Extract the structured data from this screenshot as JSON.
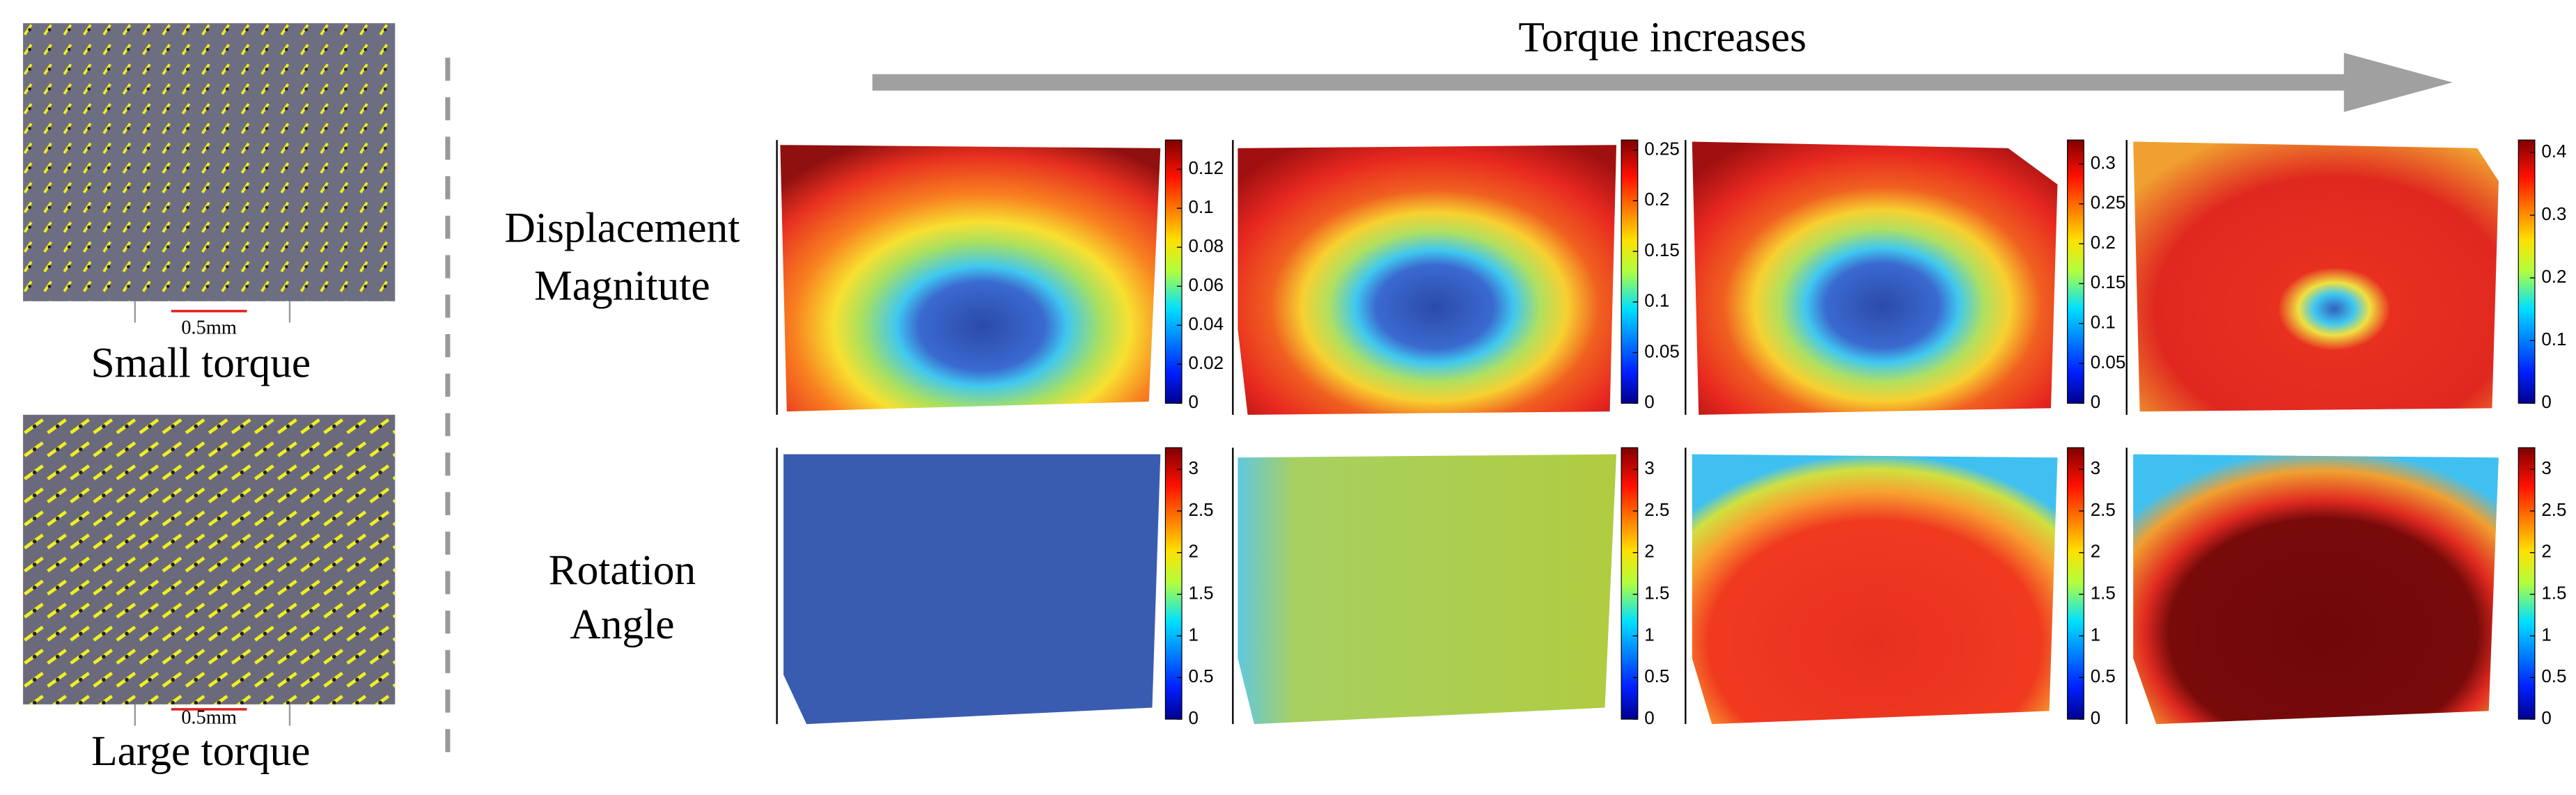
{
  "header": {
    "arrow_label": "Torque increases"
  },
  "photos": [
    {
      "label": "Small torque",
      "scale_bar": "0.5mm"
    },
    {
      "label": "Large torque",
      "scale_bar": "0.5mm"
    }
  ],
  "rows": [
    {
      "label": [
        "Displacement",
        "Magnitute"
      ],
      "colorbars": [
        {
          "lim": [
            0,
            0.135
          ],
          "ticks": [
            0,
            0.02,
            0.04,
            0.06,
            0.08,
            0.1,
            0.12
          ]
        },
        {
          "lim": [
            0,
            0.26
          ],
          "ticks": [
            0,
            0.05,
            0.1,
            0.15,
            0.2,
            0.25
          ]
        },
        {
          "lim": [
            0,
            0.33
          ],
          "ticks": [
            0,
            0.05,
            0.1,
            0.15,
            0.2,
            0.25,
            0.3
          ]
        },
        {
          "lim": [
            0,
            0.42
          ],
          "ticks": [
            0,
            0.1,
            0.2,
            0.3,
            0.4
          ]
        }
      ]
    },
    {
      "label": [
        "Rotation",
        "Angle"
      ],
      "colorbars": [
        {
          "lim": [
            0,
            3.26
          ],
          "ticks": [
            0,
            0.5,
            1,
            1.5,
            2,
            2.5,
            3
          ]
        },
        {
          "lim": [
            0,
            3.26
          ],
          "ticks": [
            0,
            0.5,
            1,
            1.5,
            2,
            2.5,
            3
          ]
        },
        {
          "lim": [
            0,
            3.26
          ],
          "ticks": [
            0,
            0.5,
            1,
            1.5,
            2,
            2.5,
            3
          ]
        },
        {
          "lim": [
            0,
            3.26
          ],
          "ticks": [
            0,
            0.5,
            1,
            1.5,
            2,
            2.5,
            3
          ]
        }
      ]
    }
  ]
}
